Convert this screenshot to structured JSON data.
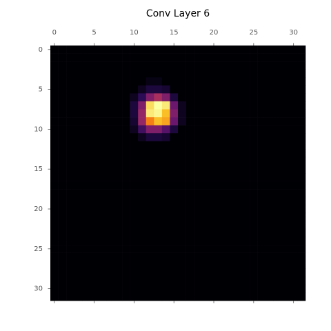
{
  "chart_data": {
    "type": "heatmap",
    "title": "Conv Layer 6",
    "colormap": "inferno",
    "xlim": [
      -0.5,
      31.5
    ],
    "ylim": [
      31.5,
      -0.5
    ],
    "xticks": [
      0,
      5,
      10,
      15,
      20,
      25,
      30
    ],
    "yticks": [
      0,
      5,
      10,
      15,
      20,
      25,
      30
    ],
    "values": [
      [
        0,
        0,
        0,
        0,
        0,
        0,
        0,
        0,
        0,
        0,
        0,
        0,
        0,
        0,
        0,
        0,
        0,
        0,
        0,
        0,
        0,
        0,
        0,
        0,
        0,
        0,
        0,
        0,
        0,
        0,
        0,
        0
      ],
      [
        0,
        0,
        0,
        0,
        0,
        0,
        0,
        0,
        0,
        0,
        0,
        0,
        0,
        0,
        0,
        0,
        0,
        0,
        0,
        0,
        0,
        0,
        0,
        0,
        0,
        0,
        0,
        0,
        0,
        0,
        0,
        0
      ],
      [
        0,
        0,
        0,
        0,
        0,
        0,
        0,
        0,
        0,
        0,
        0,
        0,
        0,
        0,
        0,
        0,
        0,
        0,
        0,
        0,
        0,
        0,
        0,
        0,
        0,
        0,
        0,
        0,
        0,
        0,
        0,
        0
      ],
      [
        0,
        0,
        0,
        0,
        0,
        0,
        0,
        0,
        0,
        0,
        0,
        0,
        0,
        0,
        0,
        0,
        0,
        0,
        0,
        0,
        0,
        0,
        0,
        0,
        0,
        0,
        0,
        0,
        0,
        0,
        0,
        0
      ],
      [
        0,
        0,
        0,
        0,
        0,
        0,
        0,
        0,
        0,
        0,
        0,
        0,
        0.03,
        0.03,
        0,
        0,
        0,
        0,
        0,
        0,
        0,
        0,
        0,
        0,
        0,
        0,
        0,
        0,
        0,
        0,
        0,
        0
      ],
      [
        0,
        0,
        0,
        0,
        0,
        0,
        0,
        0,
        0,
        0,
        0,
        0.05,
        0.1,
        0.1,
        0.08,
        0,
        0,
        0,
        0,
        0,
        0,
        0,
        0,
        0,
        0,
        0,
        0,
        0,
        0,
        0,
        0,
        0
      ],
      [
        0,
        0,
        0,
        0,
        0,
        0,
        0,
        0,
        0,
        0,
        0.05,
        0.15,
        0.35,
        0.45,
        0.35,
        0.1,
        0,
        0,
        0,
        0,
        0,
        0,
        0,
        0,
        0,
        0,
        0,
        0,
        0,
        0,
        0,
        0
      ],
      [
        0,
        0,
        0,
        0,
        0,
        0,
        0,
        0,
        0,
        0,
        0.1,
        0.35,
        0.92,
        1,
        0.95,
        0.3,
        0.05,
        0,
        0,
        0,
        0,
        0,
        0,
        0,
        0,
        0,
        0,
        0,
        0,
        0,
        0,
        0
      ],
      [
        0,
        0,
        0,
        0,
        0,
        0,
        0,
        0,
        0,
        0,
        0.1,
        0.4,
        0.95,
        0.98,
        0.85,
        0.35,
        0.05,
        0,
        0,
        0,
        0,
        0,
        0,
        0,
        0,
        0,
        0,
        0,
        0,
        0,
        0,
        0
      ],
      [
        0,
        0,
        0,
        0,
        0,
        0,
        0,
        0,
        0,
        0,
        0.08,
        0.4,
        0.72,
        0.85,
        0.8,
        0.3,
        0.05,
        0,
        0,
        0,
        0,
        0,
        0,
        0,
        0,
        0,
        0,
        0,
        0,
        0,
        0,
        0
      ],
      [
        0,
        0,
        0,
        0,
        0,
        0,
        0,
        0,
        0,
        0,
        0.05,
        0.2,
        0.35,
        0.35,
        0.25,
        0.1,
        0,
        0,
        0,
        0,
        0,
        0,
        0,
        0,
        0,
        0,
        0,
        0,
        0,
        0,
        0,
        0
      ],
      [
        0,
        0,
        0,
        0,
        0,
        0,
        0,
        0,
        0,
        0,
        0,
        0.05,
        0.1,
        0.1,
        0.08,
        0,
        0,
        0,
        0,
        0,
        0,
        0,
        0,
        0,
        0,
        0,
        0,
        0,
        0,
        0,
        0,
        0
      ],
      [
        0,
        0,
        0,
        0,
        0,
        0,
        0,
        0,
        0,
        0,
        0,
        0,
        0,
        0,
        0,
        0,
        0,
        0,
        0,
        0,
        0,
        0,
        0,
        0,
        0,
        0,
        0,
        0,
        0,
        0,
        0,
        0
      ],
      [
        0,
        0,
        0,
        0,
        0,
        0,
        0,
        0,
        0,
        0,
        0,
        0,
        0,
        0,
        0,
        0,
        0,
        0,
        0,
        0,
        0,
        0,
        0,
        0,
        0,
        0,
        0,
        0,
        0,
        0,
        0,
        0
      ],
      [
        0,
        0,
        0,
        0,
        0,
        0,
        0,
        0,
        0,
        0,
        0,
        0,
        0,
        0,
        0,
        0,
        0,
        0,
        0,
        0,
        0,
        0,
        0,
        0,
        0,
        0,
        0,
        0,
        0,
        0,
        0,
        0
      ],
      [
        0,
        0,
        0,
        0,
        0,
        0,
        0,
        0,
        0,
        0,
        0,
        0,
        0,
        0,
        0,
        0,
        0,
        0,
        0,
        0,
        0,
        0,
        0,
        0,
        0,
        0,
        0,
        0,
        0,
        0,
        0,
        0
      ],
      [
        0,
        0,
        0,
        0,
        0,
        0,
        0,
        0,
        0,
        0,
        0,
        0,
        0,
        0,
        0,
        0,
        0,
        0,
        0,
        0,
        0,
        0,
        0,
        0,
        0,
        0,
        0,
        0,
        0,
        0,
        0,
        0
      ],
      [
        0,
        0,
        0,
        0,
        0,
        0,
        0,
        0,
        0,
        0,
        0,
        0,
        0,
        0,
        0,
        0,
        0,
        0,
        0,
        0,
        0,
        0,
        0,
        0,
        0,
        0,
        0,
        0,
        0,
        0,
        0,
        0
      ],
      [
        0,
        0,
        0,
        0,
        0,
        0,
        0,
        0,
        0,
        0,
        0,
        0,
        0,
        0,
        0,
        0,
        0,
        0,
        0,
        0,
        0,
        0,
        0,
        0,
        0,
        0,
        0,
        0,
        0,
        0,
        0,
        0
      ],
      [
        0,
        0,
        0,
        0,
        0,
        0,
        0,
        0,
        0,
        0,
        0,
        0,
        0,
        0,
        0,
        0,
        0,
        0,
        0,
        0,
        0,
        0,
        0,
        0,
        0,
        0,
        0,
        0,
        0,
        0,
        0,
        0
      ],
      [
        0,
        0,
        0,
        0,
        0,
        0,
        0,
        0,
        0,
        0,
        0,
        0,
        0,
        0,
        0,
        0,
        0,
        0,
        0,
        0,
        0,
        0,
        0,
        0,
        0,
        0,
        0,
        0,
        0,
        0,
        0,
        0
      ],
      [
        0,
        0,
        0,
        0,
        0,
        0,
        0,
        0,
        0,
        0,
        0,
        0,
        0,
        0,
        0,
        0,
        0,
        0,
        0,
        0,
        0,
        0,
        0,
        0,
        0,
        0,
        0,
        0,
        0,
        0,
        0,
        0
      ],
      [
        0,
        0,
        0,
        0,
        0,
        0,
        0,
        0,
        0,
        0,
        0,
        0,
        0,
        0,
        0,
        0,
        0,
        0,
        0,
        0,
        0,
        0,
        0,
        0,
        0,
        0,
        0,
        0,
        0,
        0,
        0,
        0
      ],
      [
        0,
        0,
        0,
        0,
        0,
        0,
        0,
        0,
        0,
        0,
        0,
        0,
        0,
        0,
        0,
        0,
        0,
        0,
        0,
        0,
        0,
        0,
        0,
        0,
        0,
        0,
        0,
        0,
        0,
        0,
        0,
        0
      ],
      [
        0,
        0,
        0,
        0,
        0,
        0,
        0,
        0,
        0,
        0,
        0,
        0,
        0,
        0,
        0,
        0,
        0,
        0,
        0,
        0,
        0,
        0,
        0,
        0,
        0,
        0,
        0,
        0,
        0,
        0,
        0,
        0
      ],
      [
        0,
        0,
        0,
        0,
        0,
        0,
        0,
        0,
        0,
        0,
        0,
        0,
        0,
        0,
        0,
        0,
        0,
        0,
        0,
        0,
        0,
        0,
        0,
        0,
        0,
        0,
        0,
        0,
        0,
        0,
        0,
        0
      ],
      [
        0,
        0,
        0,
        0,
        0,
        0,
        0,
        0,
        0,
        0,
        0,
        0,
        0,
        0,
        0,
        0,
        0,
        0,
        0,
        0,
        0,
        0,
        0,
        0,
        0,
        0,
        0,
        0,
        0,
        0,
        0,
        0
      ],
      [
        0,
        0,
        0,
        0,
        0,
        0,
        0,
        0,
        0,
        0,
        0,
        0,
        0,
        0,
        0,
        0,
        0,
        0,
        0,
        0,
        0,
        0,
        0,
        0,
        0,
        0,
        0,
        0,
        0,
        0,
        0,
        0
      ],
      [
        0,
        0,
        0,
        0,
        0,
        0,
        0,
        0,
        0,
        0,
        0,
        0,
        0,
        0,
        0,
        0,
        0,
        0,
        0,
        0,
        0,
        0,
        0,
        0,
        0,
        0,
        0,
        0,
        0,
        0,
        0,
        0
      ],
      [
        0,
        0,
        0,
        0,
        0,
        0,
        0,
        0,
        0,
        0,
        0,
        0,
        0,
        0,
        0,
        0,
        0,
        0,
        0,
        0,
        0,
        0,
        0,
        0,
        0,
        0,
        0,
        0,
        0,
        0,
        0,
        0
      ],
      [
        0,
        0,
        0,
        0,
        0,
        0,
        0,
        0,
        0,
        0,
        0,
        0,
        0,
        0,
        0,
        0,
        0,
        0,
        0,
        0,
        0,
        0,
        0,
        0,
        0,
        0,
        0,
        0,
        0,
        0,
        0,
        0
      ],
      [
        0,
        0,
        0,
        0,
        0,
        0,
        0,
        0,
        0,
        0,
        0,
        0,
        0,
        0,
        0,
        0,
        0,
        0,
        0,
        0,
        0,
        0,
        0,
        0,
        0,
        0,
        0,
        0,
        0,
        0,
        0,
        0
      ]
    ]
  }
}
